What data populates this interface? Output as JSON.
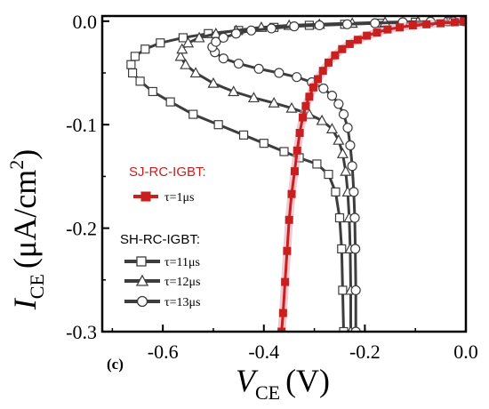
{
  "chart_data": {
    "type": "line",
    "panel_label": "(c)",
    "xlabel": {
      "symbol": "V",
      "subscript": "CE",
      "unit": "(V)"
    },
    "ylabel": {
      "symbol": "I",
      "subscript": "CE",
      "unit": "(μA/cm",
      "unit_sup": "2",
      "unit_end": ")"
    },
    "xlim": [
      -0.72,
      0.0
    ],
    "ylim": [
      -0.3,
      0.005
    ],
    "x_ticks": [
      -0.6,
      -0.4,
      -0.2,
      0.0
    ],
    "x_tick_labels": [
      "-0.6",
      "-0.4",
      "-0.2",
      "0.0"
    ],
    "y_ticks": [
      0.0,
      -0.1,
      -0.2,
      -0.3
    ],
    "y_tick_labels": [
      "0.0",
      "-0.1",
      "-0.2",
      "-0.3"
    ],
    "legend": {
      "group1_title": "SJ-RC-IGBT:",
      "group2_title": "SH-RC-IGBT:"
    },
    "colors": {
      "sj": "#c8201f",
      "sj_glow": "#e89aab",
      "sh": "#3d3d3d"
    },
    "series": [
      {
        "group": "SJ-RC-IGBT",
        "name": "τ=1μs",
        "marker": "filled-square",
        "x": [
          -0.365,
          -0.362,
          -0.358,
          -0.354,
          -0.35,
          -0.345,
          -0.339,
          -0.334,
          -0.329,
          -0.323,
          -0.317,
          -0.31,
          -0.302,
          -0.293,
          -0.283,
          -0.272,
          -0.259,
          -0.245,
          -0.23,
          -0.214,
          -0.196,
          -0.176,
          -0.155,
          -0.131,
          -0.105,
          -0.078,
          -0.05,
          -0.022,
          -0.004
        ],
        "y": [
          -0.3,
          -0.282,
          -0.252,
          -0.222,
          -0.192,
          -0.167,
          -0.145,
          -0.125,
          -0.108,
          -0.093,
          -0.082,
          -0.073,
          -0.064,
          -0.056,
          -0.048,
          -0.04,
          -0.033,
          -0.027,
          -0.022,
          -0.018,
          -0.014,
          -0.011,
          -0.008,
          -0.006,
          -0.004,
          -0.003,
          -0.002,
          -0.001,
          0.0
        ]
      },
      {
        "group": "SH-RC-IGBT",
        "name": "τ=11μs",
        "marker": "open-square",
        "x": [
          -0.242,
          -0.244,
          -0.246,
          -0.25,
          -0.258,
          -0.272,
          -0.295,
          -0.33,
          -0.36,
          -0.4,
          -0.44,
          -0.49,
          -0.54,
          -0.585,
          -0.62,
          -0.645,
          -0.66,
          -0.663,
          -0.655,
          -0.635,
          -0.605,
          -0.56,
          -0.51,
          -0.45,
          -0.38,
          -0.31,
          -0.24,
          -0.17,
          -0.1,
          -0.03,
          0.0
        ],
        "y": [
          -0.3,
          -0.26,
          -0.22,
          -0.19,
          -0.165,
          -0.148,
          -0.138,
          -0.132,
          -0.126,
          -0.118,
          -0.11,
          -0.1,
          -0.09,
          -0.078,
          -0.068,
          -0.058,
          -0.05,
          -0.042,
          -0.034,
          -0.027,
          -0.021,
          -0.016,
          -0.012,
          -0.009,
          -0.006,
          -0.004,
          -0.003,
          -0.002,
          -0.001,
          -0.0005,
          0.0
        ]
      },
      {
        "group": "SH-RC-IGBT",
        "name": "τ=12μs",
        "marker": "open-triangle",
        "x": [
          -0.228,
          -0.228,
          -0.229,
          -0.231,
          -0.234,
          -0.238,
          -0.244,
          -0.252,
          -0.265,
          -0.285,
          -0.31,
          -0.345,
          -0.38,
          -0.42,
          -0.46,
          -0.5,
          -0.535,
          -0.555,
          -0.565,
          -0.562,
          -0.55,
          -0.528,
          -0.495,
          -0.455,
          -0.405,
          -0.35,
          -0.29,
          -0.225,
          -0.16,
          -0.095,
          -0.04,
          -0.005
        ],
        "y": [
          -0.3,
          -0.26,
          -0.22,
          -0.19,
          -0.165,
          -0.145,
          -0.128,
          -0.115,
          -0.104,
          -0.096,
          -0.09,
          -0.084,
          -0.079,
          -0.074,
          -0.068,
          -0.06,
          -0.05,
          -0.042,
          -0.034,
          -0.027,
          -0.021,
          -0.016,
          -0.012,
          -0.009,
          -0.006,
          -0.004,
          -0.003,
          -0.002,
          -0.001,
          -0.0005,
          -0.0002,
          0.0
        ]
      },
      {
        "group": "SH-RC-IGBT",
        "name": "τ=13μs",
        "marker": "open-circle",
        "x": [
          -0.218,
          -0.218,
          -0.219,
          -0.22,
          -0.222,
          -0.225,
          -0.229,
          -0.234,
          -0.242,
          -0.252,
          -0.265,
          -0.282,
          -0.305,
          -0.335,
          -0.37,
          -0.41,
          -0.45,
          -0.48,
          -0.497,
          -0.502,
          -0.495,
          -0.48,
          -0.455,
          -0.425,
          -0.385,
          -0.34,
          -0.29,
          -0.235,
          -0.18,
          -0.125,
          -0.07,
          -0.025,
          -0.004
        ],
        "y": [
          -0.3,
          -0.26,
          -0.22,
          -0.19,
          -0.165,
          -0.14,
          -0.12,
          -0.103,
          -0.09,
          -0.08,
          -0.072,
          -0.065,
          -0.059,
          -0.054,
          -0.05,
          -0.046,
          -0.041,
          -0.036,
          -0.03,
          -0.025,
          -0.02,
          -0.016,
          -0.012,
          -0.009,
          -0.007,
          -0.005,
          -0.004,
          -0.003,
          -0.002,
          -0.001,
          -0.0005,
          -0.0002,
          0.0
        ]
      }
    ]
  }
}
